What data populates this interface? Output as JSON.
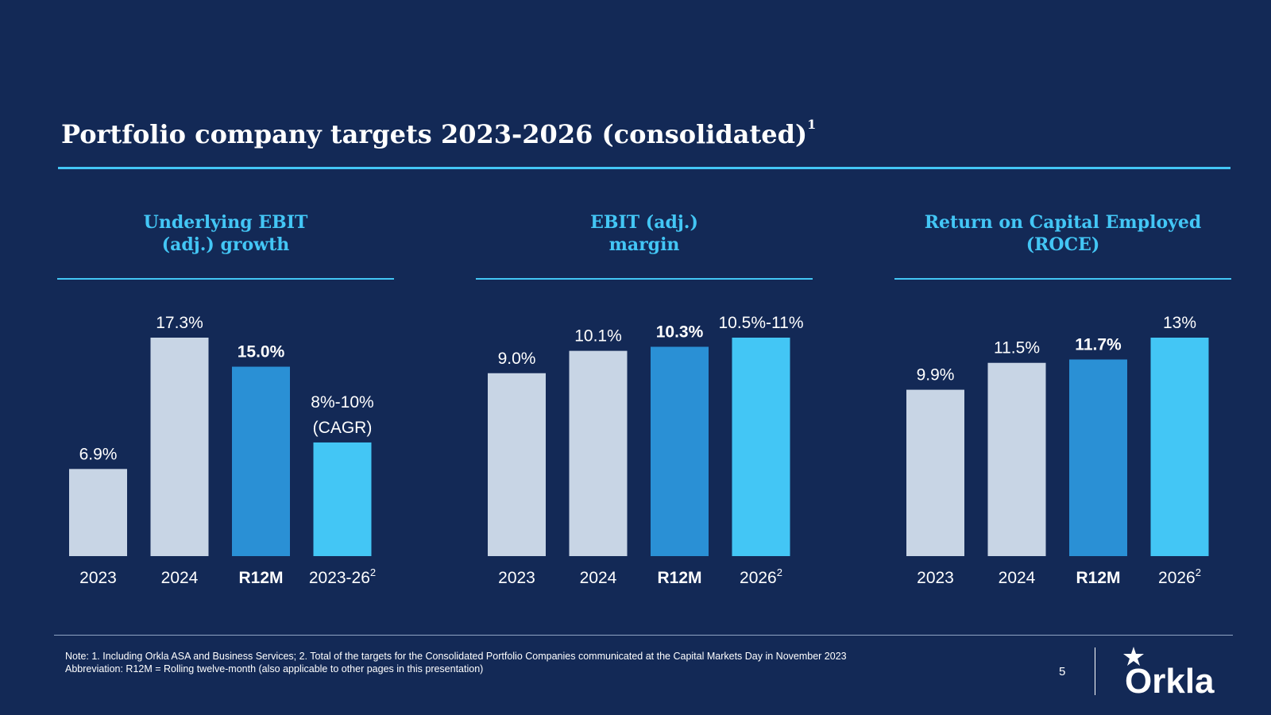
{
  "title": {
    "text": "Portfolio company targets 2023-2026 (consolidated)",
    "sup": "1"
  },
  "colors": {
    "background": "#132956",
    "accent": "#43c6f5",
    "bar_light": "#c8d5e5",
    "bar_mid": "#2a90d5",
    "bar_bright": "#43c6f5"
  },
  "chart_data": [
    {
      "type": "bar",
      "title": "Underlying EBIT (adj.) growth",
      "categories": [
        "2023",
        "2024",
        "R12M",
        "2023-26"
      ],
      "category_sups": [
        "",
        "",
        "",
        "2"
      ],
      "values": [
        6.9,
        17.3,
        15.0,
        9.0
      ],
      "labels": [
        "6.9%",
        "17.3%",
        "15.0%",
        "8%-10% (CAGR)"
      ],
      "label_lines": [
        [
          "6.9%"
        ],
        [
          "17.3%"
        ],
        [
          "15.0%"
        ],
        [
          "8%-10%",
          "(CAGR)"
        ]
      ],
      "bold": [
        false,
        false,
        true,
        false
      ],
      "bar_colors": [
        "#c8d5e5",
        "#c8d5e5",
        "#2a90d5",
        "#43c6f5"
      ],
      "ylim": [
        0,
        17.3
      ]
    },
    {
      "type": "bar",
      "title": "EBIT (adj.) margin",
      "categories": [
        "2023",
        "2024",
        "R12M",
        "2026"
      ],
      "category_sups": [
        "",
        "",
        "",
        "2"
      ],
      "values": [
        9.0,
        10.1,
        10.3,
        10.75
      ],
      "labels": [
        "9.0%",
        "10.1%",
        "10.3%",
        "10.5%-11%"
      ],
      "label_lines": [
        [
          "9.0%"
        ],
        [
          "10.1%"
        ],
        [
          "10.3%"
        ],
        [
          "10.5%-11%"
        ]
      ],
      "bold": [
        false,
        false,
        true,
        false
      ],
      "bar_colors": [
        "#c8d5e5",
        "#c8d5e5",
        "#2a90d5",
        "#43c6f5"
      ],
      "ylim": [
        0,
        10.75
      ]
    },
    {
      "type": "bar",
      "title": "Return on Capital Employed (ROCE)",
      "categories": [
        "2023",
        "2024",
        "R12M",
        "2026"
      ],
      "category_sups": [
        "",
        "",
        "",
        "2"
      ],
      "values": [
        9.9,
        11.5,
        11.7,
        13.0
      ],
      "labels": [
        "9.9%",
        "11.5%",
        "11.7%",
        "13%"
      ],
      "label_lines": [
        [
          "9.9%"
        ],
        [
          "11.5%"
        ],
        [
          "11.7%"
        ],
        [
          "13%"
        ]
      ],
      "bold": [
        false,
        false,
        true,
        false
      ],
      "bar_colors": [
        "#c8d5e5",
        "#c8d5e5",
        "#2a90d5",
        "#43c6f5"
      ],
      "ylim": [
        0,
        13.0
      ]
    }
  ],
  "panels": [
    {
      "heading": "Underlying EBIT\n(adj.) growth"
    },
    {
      "heading": "EBIT (adj.)\nmargin"
    },
    {
      "heading": "Return on Capital Employed\n(ROCE)"
    }
  ],
  "footer": {
    "note_line1": "Note: 1. Including Orkla ASA and Business Services; 2. Total of the targets for the Consolidated Portfolio Companies communicated at the Capital Markets Day in November 2023",
    "note_line2": "Abbreviation: R12M = Rolling twelve-month (also applicable to other pages in this presentation)",
    "page_number": "5",
    "logo_text": "Orkla",
    "logo_icon": "star-icon"
  }
}
